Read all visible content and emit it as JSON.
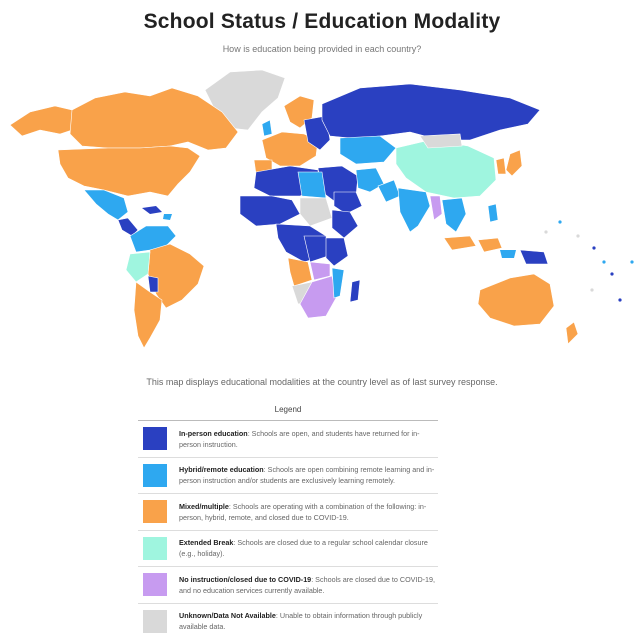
{
  "header": {
    "title": "School Status / Education Modality",
    "subtitle": "How is education being provided in each country?"
  },
  "caption": "This map displays educational modalities at the country level as of last survey response.",
  "legend": {
    "title": "Legend",
    "items": [
      {
        "label": "In-person education",
        "desc": ": Schools are open, and students have returned for in-person instruction.",
        "color": "#2a40c1"
      },
      {
        "label": "Hybrid/remote education",
        "desc": ": Schools are open combining remote learning and in-person instruction and/or students are exclusively learning remotely.",
        "color": "#2ea8f0"
      },
      {
        "label": "Mixed/multiple",
        "desc": ": Schools are operating with a combination of the following: in-person, hybrid, remote, and closed due to COVID-19.",
        "color": "#f9a24a"
      },
      {
        "label": "Extended Break",
        "desc": ": Schools are closed due to a regular school calendar closure (e.g., holiday).",
        "color": "#9ff5df"
      },
      {
        "label": "No instruction/closed due to COVID-19",
        "desc": ": Schools are closed due to COVID-19, and no education services currently available.",
        "color": "#c79bf0"
      },
      {
        "label": "Unknown/Data Not Available",
        "desc": ": Unable to obtain information through publicly available data.",
        "color": "#d9d9d9"
      }
    ]
  }
}
